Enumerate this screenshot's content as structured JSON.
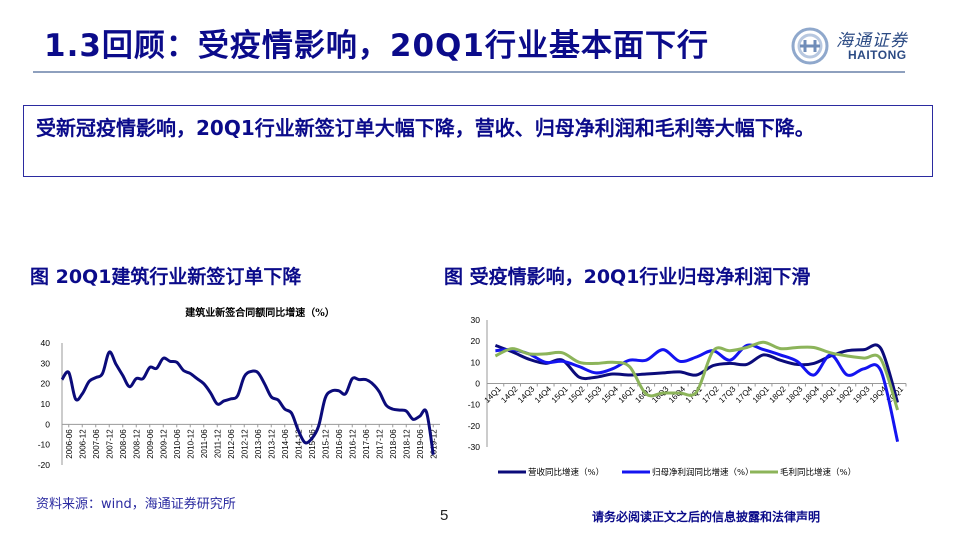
{
  "header": {
    "title": "1.3回顾：受疫情影响，20Q1行业基本面下行",
    "logo": {
      "cn": "海通证券",
      "en": "HAITONG",
      "color": "#2c4b84"
    }
  },
  "summary": {
    "text": "受新冠疫情影响，20Q1行业新签订单大幅下降，营收、归母净利润和毛利等大幅下降。"
  },
  "figures": {
    "left_title": "图 20Q1建筑行业新签订单下降",
    "right_title": "图 受疫情影响，20Q1行业归母净利润下滑"
  },
  "footer": {
    "source": "资料来源：wind，海通证券研究所",
    "page": "5",
    "disclaimer": "请务必阅读正文之后的信息披露和法律声明"
  },
  "colors": {
    "title": "#0b0b8a",
    "revenue": "#0b0b7a",
    "net_profit": "#1414f0",
    "gross_profit": "#8cb45a",
    "axis": "#9a9a9a"
  },
  "chart_data": [
    {
      "type": "line",
      "title": "建筑业新签合同额同比增速（%）",
      "xlabel": "",
      "ylabel": "",
      "ylim": [
        -20,
        40
      ],
      "yticks": [
        -20,
        -10,
        0,
        10,
        20,
        30,
        40
      ],
      "grid": false,
      "legend": "none",
      "tick_labels": [
        "2006-06",
        "2006-12",
        "2007-06",
        "2007-12",
        "2008-06",
        "2008-12",
        "2009-06",
        "2009-12",
        "2010-06",
        "2010-12",
        "2011-06",
        "2011-12",
        "2012-06",
        "2012-12",
        "2013-06",
        "2013-12",
        "2014-06",
        "2014-12",
        "2015-06",
        "2015-12",
        "2016-06",
        "2016-12",
        "2017-06",
        "2017-12",
        "2018-06",
        "2018-12",
        "2019-06",
        "2019-12"
      ],
      "x": [
        "2006-03",
        "2006-06",
        "2006-09",
        "2006-12",
        "2007-03",
        "2007-06",
        "2007-09",
        "2007-12",
        "2008-03",
        "2008-06",
        "2008-09",
        "2008-12",
        "2009-03",
        "2009-06",
        "2009-09",
        "2009-12",
        "2010-03",
        "2010-06",
        "2010-09",
        "2010-12",
        "2011-03",
        "2011-06",
        "2011-09",
        "2011-12",
        "2012-03",
        "2012-06",
        "2012-09",
        "2012-12",
        "2013-03",
        "2013-06",
        "2013-09",
        "2013-12",
        "2014-03",
        "2014-06",
        "2014-09",
        "2014-12",
        "2015-03",
        "2015-06",
        "2015-09",
        "2015-12",
        "2016-03",
        "2016-06",
        "2016-09",
        "2016-12",
        "2017-03",
        "2017-06",
        "2017-09",
        "2017-12",
        "2018-03",
        "2018-06",
        "2018-09",
        "2018-12",
        "2019-03",
        "2019-06",
        "2019-09",
        "2019-12",
        "2020-03"
      ],
      "series": [
        {
          "name": "建筑业新签合同额同比增速（%）",
          "color": "#0b0b7a",
          "values": [
            22,
            25.5,
            12.5,
            15,
            21,
            23,
            25,
            35.5,
            29.5,
            24,
            18.5,
            22.5,
            22.5,
            28,
            27.5,
            32.5,
            31,
            30.5,
            26.5,
            25,
            22.5,
            20,
            15.5,
            10,
            11.5,
            12.5,
            14,
            23.5,
            26,
            25.5,
            20,
            13.5,
            12,
            7.5,
            5.5,
            -3,
            -9,
            -7,
            -1,
            13,
            16.5,
            16.5,
            15,
            22.5,
            22,
            22,
            20,
            16,
            9.5,
            7.5,
            7,
            6.5,
            2.5,
            4,
            6,
            -15,
            null
          ]
        }
      ]
    },
    {
      "type": "line",
      "title": "",
      "xlabel": "",
      "ylabel": "",
      "ylim": [
        -30,
        30
      ],
      "yticks": [
        -30,
        -20,
        -10,
        0,
        10,
        20,
        30
      ],
      "grid": false,
      "legend": "bottom",
      "categories": [
        "14Q1",
        "14Q2",
        "14Q3",
        "14Q4",
        "15Q1",
        "15Q2",
        "15Q3",
        "15Q4",
        "16Q1",
        "16Q2",
        "16Q3",
        "16Q4",
        "17Q1",
        "17Q2",
        "17Q3",
        "17Q4",
        "18Q1",
        "18Q2",
        "18Q3",
        "18Q4",
        "19Q1",
        "19Q2",
        "19Q3",
        "19Q4",
        "20Q1"
      ],
      "series": [
        {
          "name": "营收同比增速（%）",
          "color": "#0b0b7a",
          "values": [
            18,
            15,
            11.5,
            9.5,
            11,
            3,
            3,
            4.5,
            4,
            4.5,
            5,
            5.5,
            4,
            8.5,
            9.5,
            9,
            13.5,
            11,
            9,
            9.5,
            13,
            15.5,
            16,
            16.5,
            -9
          ]
        },
        {
          "name": "归母净利润同比增速（%）",
          "color": "#1414f0",
          "values": [
            15.5,
            16,
            14,
            10,
            10.5,
            8,
            5,
            7,
            11,
            11,
            16,
            10.5,
            12.5,
            15.5,
            11,
            18,
            16,
            13.5,
            10.5,
            4,
            13.5,
            4,
            7,
            6,
            -27.5
          ]
        },
        {
          "name": "毛利同比增速（%）",
          "color": "#8cb45a",
          "values": [
            13,
            16.5,
            14,
            14,
            14.5,
            10,
            9.5,
            10,
            8,
            -5,
            -4.5,
            -4.5,
            -4,
            15.5,
            15.5,
            17,
            19.5,
            16.5,
            17,
            17,
            14.5,
            13,
            12,
            11.5,
            -12.5
          ]
        }
      ]
    }
  ]
}
